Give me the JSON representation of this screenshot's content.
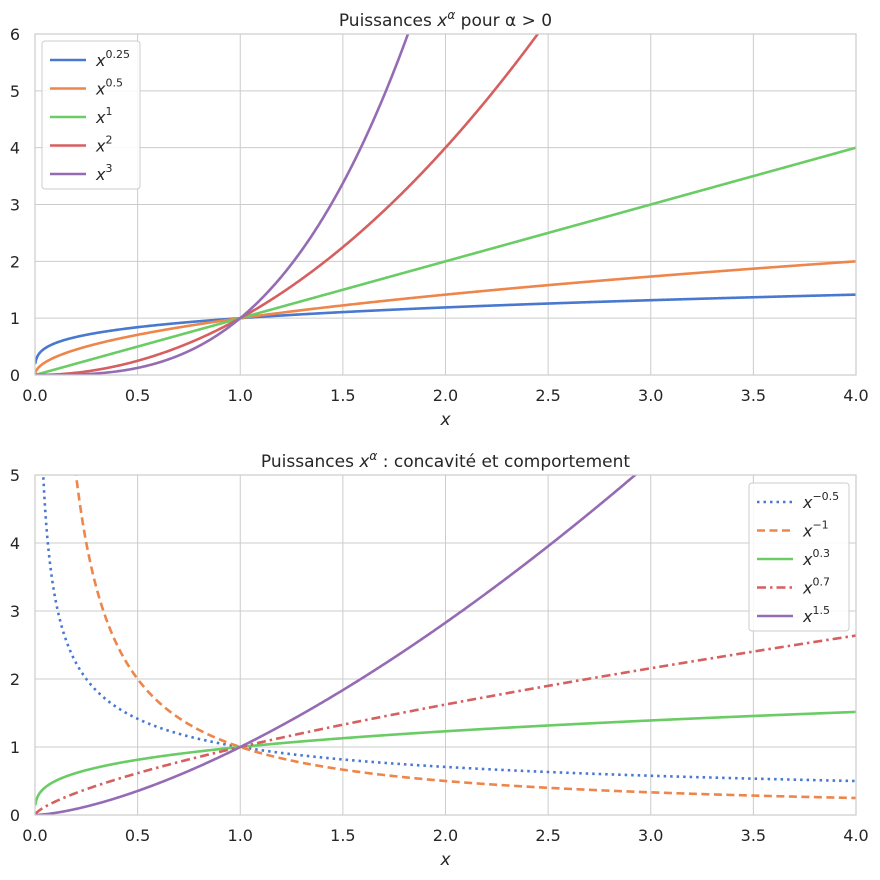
{
  "chart_data": [
    {
      "type": "line",
      "title": "Puissances x^α pour α > 0",
      "title_parts": {
        "prefix": "Puissances ",
        "base": "x",
        "exp": "α",
        "suffix": " pour α > 0"
      },
      "xlabel": "x",
      "ylabel": "",
      "xlim": [
        0,
        4
      ],
      "ylim": [
        0,
        6
      ],
      "xticks": [
        "0.0",
        "0.5",
        "1.0",
        "1.5",
        "2.0",
        "2.5",
        "3.0",
        "3.5",
        "4.0"
      ],
      "yticks": [
        "0",
        "1",
        "2",
        "3",
        "4",
        "5",
        "6"
      ],
      "grid": true,
      "legend_position": "top-left",
      "series": [
        {
          "name": "x^0.25",
          "base": "x",
          "exp": "0.25",
          "alpha": 0.25,
          "color": "#4878d0",
          "dash": "solid"
        },
        {
          "name": "x^0.5",
          "base": "x",
          "exp": "0.5",
          "alpha": 0.5,
          "color": "#ee854a",
          "dash": "solid"
        },
        {
          "name": "x^1",
          "base": "x",
          "exp": "1",
          "alpha": 1,
          "color": "#6acc64",
          "dash": "solid"
        },
        {
          "name": "x^2",
          "base": "x",
          "exp": "2",
          "alpha": 2,
          "color": "#d65f5f",
          "dash": "solid"
        },
        {
          "name": "x^3",
          "base": "x",
          "exp": "3",
          "alpha": 3,
          "color": "#956cb4",
          "dash": "solid"
        }
      ]
    },
    {
      "type": "line",
      "title": "Puissances x^α : concavité et comportement",
      "title_parts": {
        "prefix": "Puissances ",
        "base": "x",
        "exp": "α",
        "suffix": " : concavité et comportement"
      },
      "xlabel": "x",
      "ylabel": "",
      "xlim": [
        0,
        4
      ],
      "ylim": [
        0,
        5
      ],
      "xticks": [
        "0.0",
        "0.5",
        "1.0",
        "1.5",
        "2.0",
        "2.5",
        "3.0",
        "3.5",
        "4.0"
      ],
      "yticks": [
        "0",
        "1",
        "2",
        "3",
        "4",
        "5"
      ],
      "grid": true,
      "legend_position": "top-right",
      "series": [
        {
          "name": "x^-0.5",
          "base": "x",
          "exp": "−0.5",
          "alpha": -0.5,
          "color": "#4878d0",
          "dash": "dotted"
        },
        {
          "name": "x^-1",
          "base": "x",
          "exp": "−1",
          "alpha": -1,
          "color": "#ee854a",
          "dash": "dashed"
        },
        {
          "name": "x^0.3",
          "base": "x",
          "exp": "0.3",
          "alpha": 0.3,
          "color": "#6acc64",
          "dash": "solid"
        },
        {
          "name": "x^0.7",
          "base": "x",
          "exp": "0.7",
          "alpha": 0.7,
          "color": "#d65f5f",
          "dash": "dashdot"
        },
        {
          "name": "x^1.5",
          "base": "x",
          "exp": "1.5",
          "alpha": 1.5,
          "color": "#956cb4",
          "dash": "solid"
        }
      ]
    }
  ]
}
